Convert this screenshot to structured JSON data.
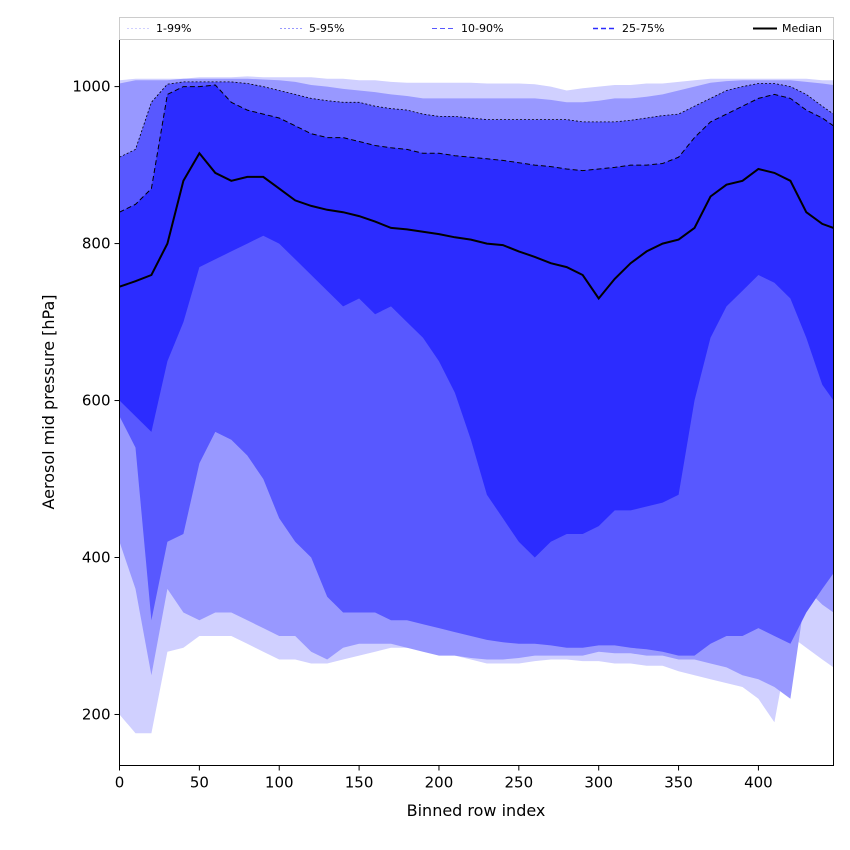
{
  "chart_data": {
    "type": "area",
    "title": "",
    "xlabel": "Binned row index",
    "ylabel": "Aerosol mid pressure [hPa]",
    "xlim": [
      0,
      447
    ],
    "ylim": [
      135,
      1060
    ],
    "x_ticks": [
      0,
      50,
      100,
      150,
      200,
      250,
      300,
      350,
      400
    ],
    "y_ticks": [
      200,
      400,
      600,
      800,
      1000
    ],
    "legend_position": "top (single row across the plot)",
    "colors": {
      "band_1_99": "#d0d0ff",
      "band_5_95": "#9898ff",
      "band_10_90": "#5858ff",
      "band_25_75": "#2c2cff",
      "median": "#000000"
    },
    "x": [
      0,
      10,
      20,
      30,
      40,
      50,
      60,
      70,
      80,
      90,
      100,
      110,
      120,
      130,
      140,
      150,
      160,
      170,
      180,
      190,
      200,
      210,
      220,
      230,
      240,
      250,
      260,
      270,
      280,
      290,
      300,
      310,
      320,
      330,
      340,
      350,
      360,
      370,
      380,
      390,
      400,
      410,
      420,
      430,
      440,
      447
    ],
    "series": [
      {
        "name": "1-99%",
        "lower": [
          200,
          176,
          176,
          280,
          285,
          300,
          300,
          300,
          290,
          280,
          270,
          270,
          265,
          265,
          270,
          275,
          280,
          285,
          285,
          285,
          280,
          275,
          270,
          265,
          265,
          265,
          268,
          270,
          270,
          268,
          268,
          265,
          265,
          262,
          262,
          255,
          250,
          245,
          240,
          235,
          220,
          190,
          300,
          285,
          270,
          260
        ],
        "upper": [
          1008,
          1010,
          1010,
          1010,
          1010,
          1012,
          1012,
          1012,
          1013,
          1012,
          1012,
          1012,
          1012,
          1010,
          1010,
          1008,
          1008,
          1006,
          1005,
          1005,
          1005,
          1005,
          1005,
          1004,
          1004,
          1004,
          1003,
          1000,
          995,
          998,
          1000,
          1002,
          1002,
          1004,
          1004,
          1006,
          1008,
          1010,
          1010,
          1010,
          1010,
          1010,
          1010,
          1010,
          1008,
          1008
        ]
      },
      {
        "name": "5-95%",
        "lower": [
          420,
          360,
          250,
          360,
          330,
          320,
          330,
          330,
          320,
          310,
          300,
          300,
          280,
          270,
          285,
          290,
          290,
          290,
          285,
          280,
          275,
          275,
          272,
          270,
          270,
          272,
          275,
          275,
          275,
          275,
          280,
          278,
          278,
          275,
          275,
          270,
          270,
          265,
          260,
          250,
          245,
          235,
          220,
          360,
          340,
          330
        ],
        "upper": [
          1004,
          1008,
          1008,
          1008,
          1010,
          1010,
          1010,
          1010,
          1010,
          1009,
          1008,
          1006,
          1002,
          1000,
          997,
          995,
          993,
          990,
          988,
          985,
          985,
          985,
          985,
          985,
          985,
          985,
          985,
          983,
          980,
          980,
          982,
          985,
          985,
          987,
          990,
          995,
          1000,
          1005,
          1007,
          1008,
          1008,
          1008,
          1008,
          1006,
          1004,
          1002
        ]
      },
      {
        "name": "10-90%",
        "lower": [
          580,
          540,
          320,
          420,
          430,
          520,
          560,
          550,
          530,
          500,
          450,
          420,
          400,
          350,
          330,
          330,
          330,
          320,
          320,
          315,
          310,
          305,
          300,
          295,
          292,
          290,
          290,
          288,
          285,
          285,
          288,
          288,
          285,
          283,
          280,
          275,
          275,
          290,
          300,
          300,
          310,
          300,
          290,
          330,
          360,
          380
        ],
        "upper": [
          910,
          920,
          980,
          1003,
          1006,
          1006,
          1006,
          1006,
          1004,
          1000,
          995,
          990,
          985,
          982,
          980,
          980,
          975,
          972,
          970,
          965,
          962,
          962,
          960,
          958,
          958,
          958,
          958,
          958,
          958,
          955,
          955,
          955,
          957,
          960,
          963,
          965,
          975,
          985,
          995,
          1000,
          1004,
          1004,
          1000,
          990,
          975,
          965
        ]
      },
      {
        "name": "25-75%",
        "lower": [
          600,
          580,
          560,
          650,
          700,
          770,
          780,
          790,
          800,
          810,
          800,
          780,
          760,
          740,
          720,
          730,
          710,
          720,
          700,
          680,
          650,
          610,
          550,
          480,
          450,
          420,
          400,
          420,
          430,
          430,
          440,
          460,
          460,
          465,
          470,
          480,
          600,
          680,
          720,
          740,
          760,
          750,
          730,
          680,
          620,
          600
        ],
        "upper": [
          840,
          850,
          870,
          990,
          1000,
          1000,
          1002,
          980,
          970,
          965,
          960,
          950,
          940,
          935,
          935,
          930,
          925,
          922,
          920,
          915,
          915,
          912,
          910,
          908,
          906,
          903,
          900,
          898,
          895,
          893,
          895,
          897,
          900,
          900,
          902,
          910,
          935,
          955,
          965,
          975,
          985,
          990,
          985,
          970,
          960,
          950
        ]
      },
      {
        "name": "Median",
        "values": [
          745,
          752,
          760,
          800,
          880,
          915,
          890,
          880,
          885,
          885,
          870,
          855,
          848,
          843,
          840,
          835,
          828,
          820,
          818,
          815,
          812,
          808,
          805,
          800,
          798,
          790,
          783,
          775,
          770,
          760,
          730,
          755,
          775,
          790,
          800,
          805,
          820,
          860,
          875,
          880,
          895,
          890,
          880,
          840,
          825,
          820
        ]
      }
    ]
  }
}
